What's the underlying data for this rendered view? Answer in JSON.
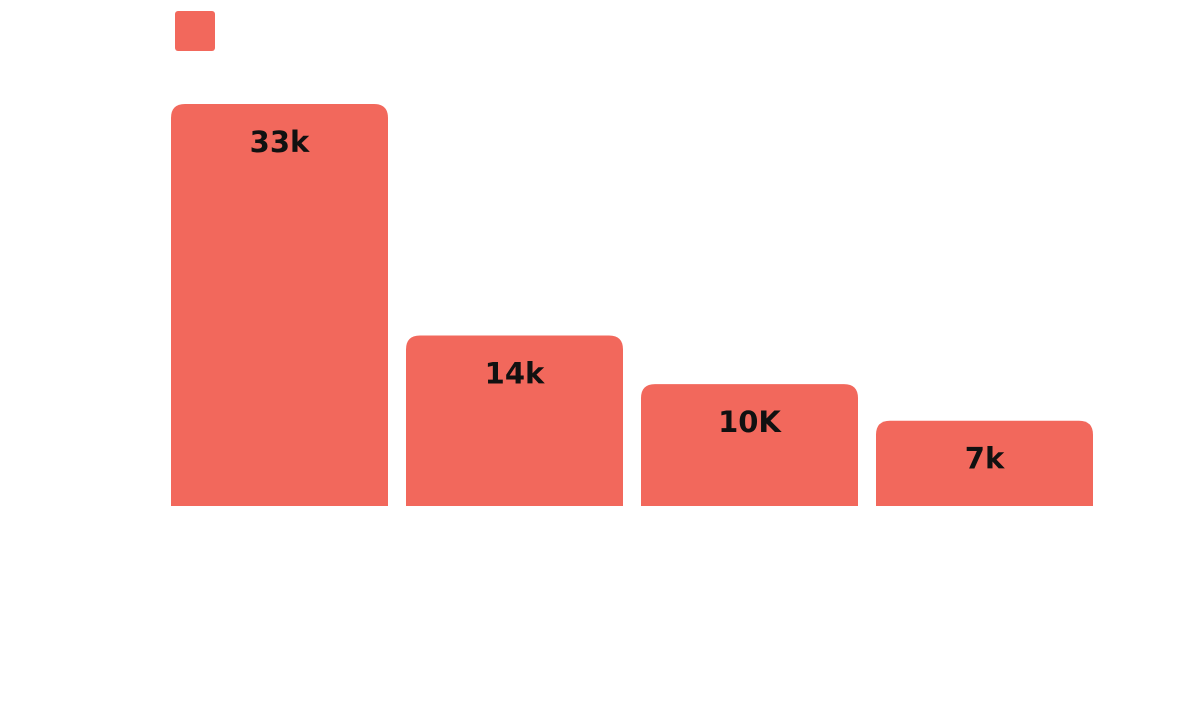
{
  "chart_data": {
    "type": "bar",
    "categories": [
      "",
      "",
      "",
      ""
    ],
    "series": [
      {
        "values": [
          33000,
          14000,
          10000,
          7000
        ],
        "data_labels": [
          "33k",
          "14k",
          "10K",
          "7k"
        ],
        "color": "#F2685C"
      }
    ],
    "legend": {
      "placement": "top-left",
      "entries": [
        {
          "label": "",
          "color": "#F2685C"
        }
      ]
    },
    "title": "",
    "xlabel": "",
    "ylabel": "",
    "ylim": [
      0,
      33000
    ],
    "grid": false
  },
  "colors": {
    "bar": "#F2685C",
    "label_text": "#111111",
    "background": "#FFFFFF"
  }
}
